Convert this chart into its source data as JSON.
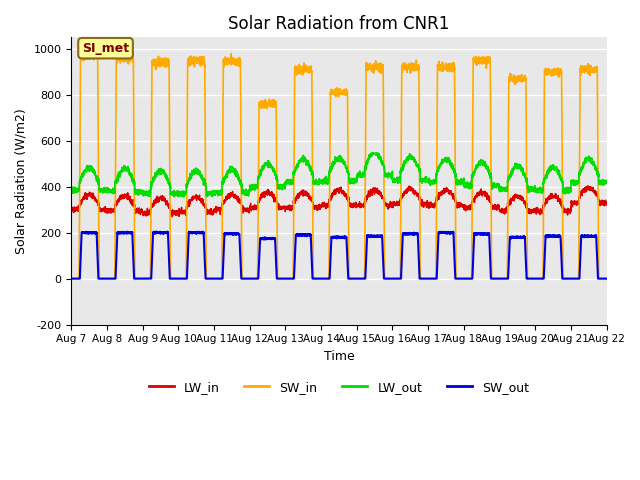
{
  "title": "Solar Radiation from CNR1",
  "xlabel": "Time",
  "ylabel": "Solar Radiation (W/m2)",
  "ylim": [
    -200,
    1050
  ],
  "yticks": [
    -200,
    0,
    200,
    400,
    600,
    800,
    1000
  ],
  "xtick_labels": [
    "Aug 7",
    "Aug 8",
    "Aug 9",
    "Aug 10",
    "Aug 11",
    "Aug 12",
    "Aug 13",
    "Aug 14",
    "Aug 15",
    "Aug 16",
    "Aug 17",
    "Aug 18",
    "Aug 19",
    "Aug 20",
    "Aug 21",
    "Aug 22"
  ],
  "colors": {
    "LW_in": "#dd0000",
    "SW_in": "#ffaa00",
    "LW_out": "#00dd00",
    "SW_out": "#0000dd"
  },
  "bg_color": "#e8e8e8",
  "annotation_text": "SI_met",
  "annotation_facecolor": "#ffff99",
  "annotation_edgecolor": "#8b6914",
  "annotation_textcolor": "#800000",
  "num_days": 15,
  "pts_per_day": 288,
  "SW_in_peaks": [
    970,
    960,
    940,
    950,
    945,
    760,
    910,
    810,
    920,
    920,
    920,
    950,
    870,
    900,
    910
  ],
  "SW_out_peaks": [
    200,
    200,
    200,
    200,
    195,
    175,
    190,
    180,
    185,
    195,
    200,
    195,
    180,
    185,
    185
  ],
  "LW_in_base": [
    320,
    315,
    305,
    310,
    320,
    330,
    330,
    340,
    340,
    345,
    340,
    330,
    315,
    315,
    350
  ],
  "LW_out_base": [
    415,
    410,
    400,
    400,
    405,
    430,
    450,
    455,
    480,
    460,
    450,
    435,
    420,
    415,
    450
  ]
}
